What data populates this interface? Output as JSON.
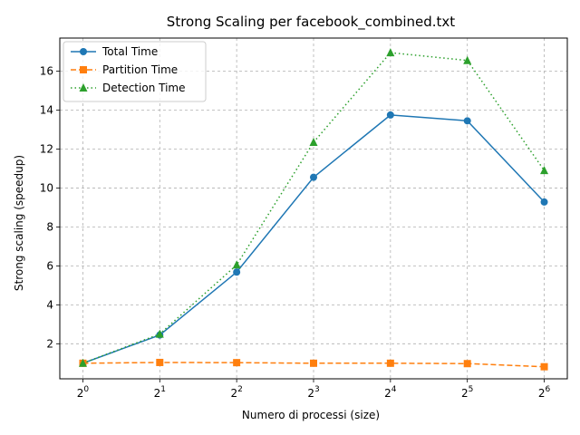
{
  "chart_data": {
    "type": "line",
    "title": "Strong Scaling per facebook_combined.txt",
    "xlabel": "Numero di processi (size)",
    "ylabel": "Strong scaling (speedup)",
    "x": [
      1,
      2,
      4,
      8,
      16,
      32,
      64
    ],
    "x_scale": "log2",
    "x_tick_labels": [
      {
        "base": "2",
        "exp": "0"
      },
      {
        "base": "2",
        "exp": "1"
      },
      {
        "base": "2",
        "exp": "2"
      },
      {
        "base": "2",
        "exp": "3"
      },
      {
        "base": "2",
        "exp": "4"
      },
      {
        "base": "2",
        "exp": "5"
      },
      {
        "base": "2",
        "exp": "6"
      }
    ],
    "y_ticks": [
      2,
      4,
      6,
      8,
      10,
      12,
      14,
      16
    ],
    "ylim": [
      0.2,
      17.7
    ],
    "grid": true,
    "legend_position": "top-left",
    "series": [
      {
        "name": "Total Time",
        "color": "#1f77b4",
        "line_style": "solid",
        "marker": "circle",
        "values": [
          1.0,
          2.45,
          5.68,
          10.55,
          13.75,
          13.45,
          9.28
        ]
      },
      {
        "name": "Partition Time",
        "color": "#ff7f0e",
        "line_style": "dashed",
        "marker": "square",
        "values": [
          1.0,
          1.04,
          1.03,
          1.0,
          1.0,
          0.98,
          0.82
        ]
      },
      {
        "name": "Detection Time",
        "color": "#2ca02c",
        "line_style": "dotted",
        "marker": "triangle",
        "values": [
          1.0,
          2.5,
          6.05,
          12.35,
          16.95,
          16.55,
          10.9
        ]
      }
    ]
  }
}
